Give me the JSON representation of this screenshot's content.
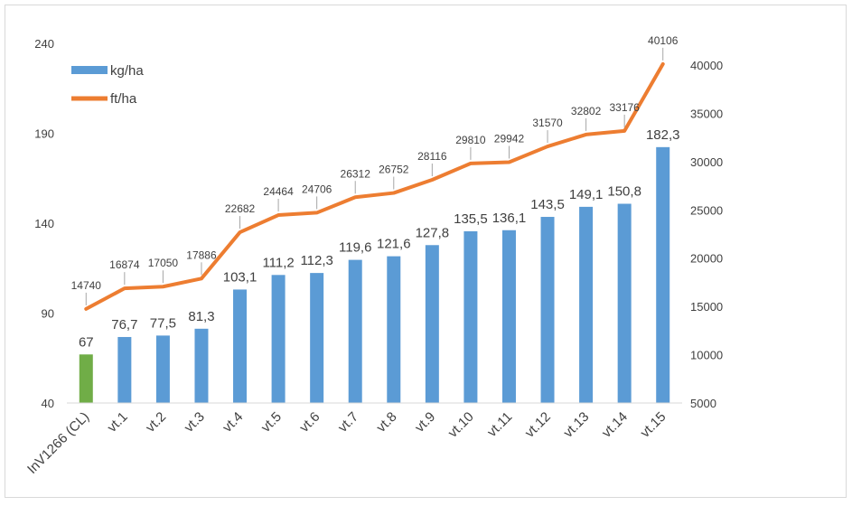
{
  "chart_data": {
    "type": "bar+line",
    "categories": [
      "InV1266 (CL)",
      "vt.1",
      "vt.2",
      "vt.3",
      "vt.4",
      "vt.5",
      "vt.6",
      "vt.7",
      "vt.8",
      "vt.9",
      "vt.10",
      "vt.11",
      "vt.12",
      "vt.13",
      "vt.14",
      "vt.15"
    ],
    "series": [
      {
        "name": "kg/ha",
        "type": "bar",
        "axis": "left",
        "values": [
          67,
          76.7,
          77.5,
          81.3,
          103.1,
          111.2,
          112.3,
          119.6,
          121.6,
          127.8,
          135.5,
          136.1,
          143.5,
          149.1,
          150.8,
          182.3
        ],
        "labels": [
          "67",
          "76,7",
          "77,5",
          "81,3",
          "103,1",
          "111,2",
          "112,3",
          "119,6",
          "121,6",
          "127,8",
          "135,5",
          "136,1",
          "143,5",
          "149,1",
          "150,8",
          "182,3"
        ],
        "color": "#5b9bd5",
        "highlight": {
          "index": 0,
          "color": "#70ad47"
        }
      },
      {
        "name": "ft/ha",
        "type": "line",
        "axis": "right",
        "values": [
          14740,
          16874,
          17050,
          17886,
          22682,
          24464,
          24706,
          26312,
          26752,
          28116,
          29810,
          29942,
          31570,
          32802,
          33176,
          40106
        ],
        "labels": [
          "14740",
          "16874",
          "17050",
          "17886",
          "22682",
          "24464",
          "24706",
          "26312",
          "26752",
          "28116",
          "29810",
          "29942",
          "31570",
          "32802",
          "33176",
          "40106"
        ],
        "color": "#ed7d31"
      }
    ],
    "y_left": {
      "min": 40,
      "max": 240,
      "ticks": [
        40,
        90,
        140,
        190,
        240
      ]
    },
    "y_right": {
      "min": 5000,
      "max": 40000,
      "ticks": [
        5000,
        10000,
        15000,
        20000,
        25000,
        30000,
        35000,
        40000
      ]
    },
    "grid": false,
    "legend_position": "top-left",
    "title": "",
    "xlabel": "",
    "ylabel": ""
  }
}
